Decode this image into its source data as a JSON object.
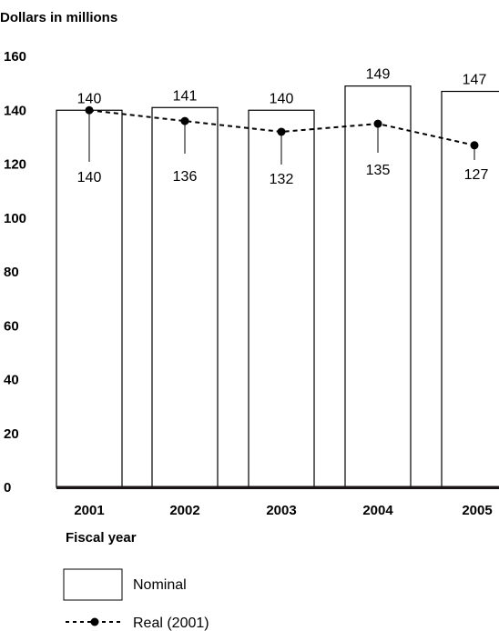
{
  "chart_data": {
    "type": "bar",
    "ylabel": "Dollars in millions",
    "xlabel": "Fiscal year",
    "categories": [
      "2001",
      "2002",
      "2003",
      "2004",
      "2005"
    ],
    "ylim": [
      0,
      160
    ],
    "yticks": [
      "0",
      "20",
      "40",
      "60",
      "80",
      "100",
      "120",
      "140",
      "160"
    ],
    "grid": false,
    "legend_position": "bottom-left",
    "series": [
      {
        "name": "Nominal",
        "type": "bar",
        "values": [
          140,
          141,
          140,
          149,
          147
        ],
        "labels": [
          "140",
          "141",
          "140",
          "149",
          "147"
        ],
        "color": "#ffffff",
        "edge_color": "#000000"
      },
      {
        "name": "Real (2001)",
        "type": "line",
        "style": "dashed",
        "marker": "circle",
        "values": [
          140,
          136,
          132,
          135,
          127
        ],
        "labels": [
          "140",
          "136",
          "132",
          "135",
          "127"
        ],
        "color": "#000000"
      }
    ]
  }
}
